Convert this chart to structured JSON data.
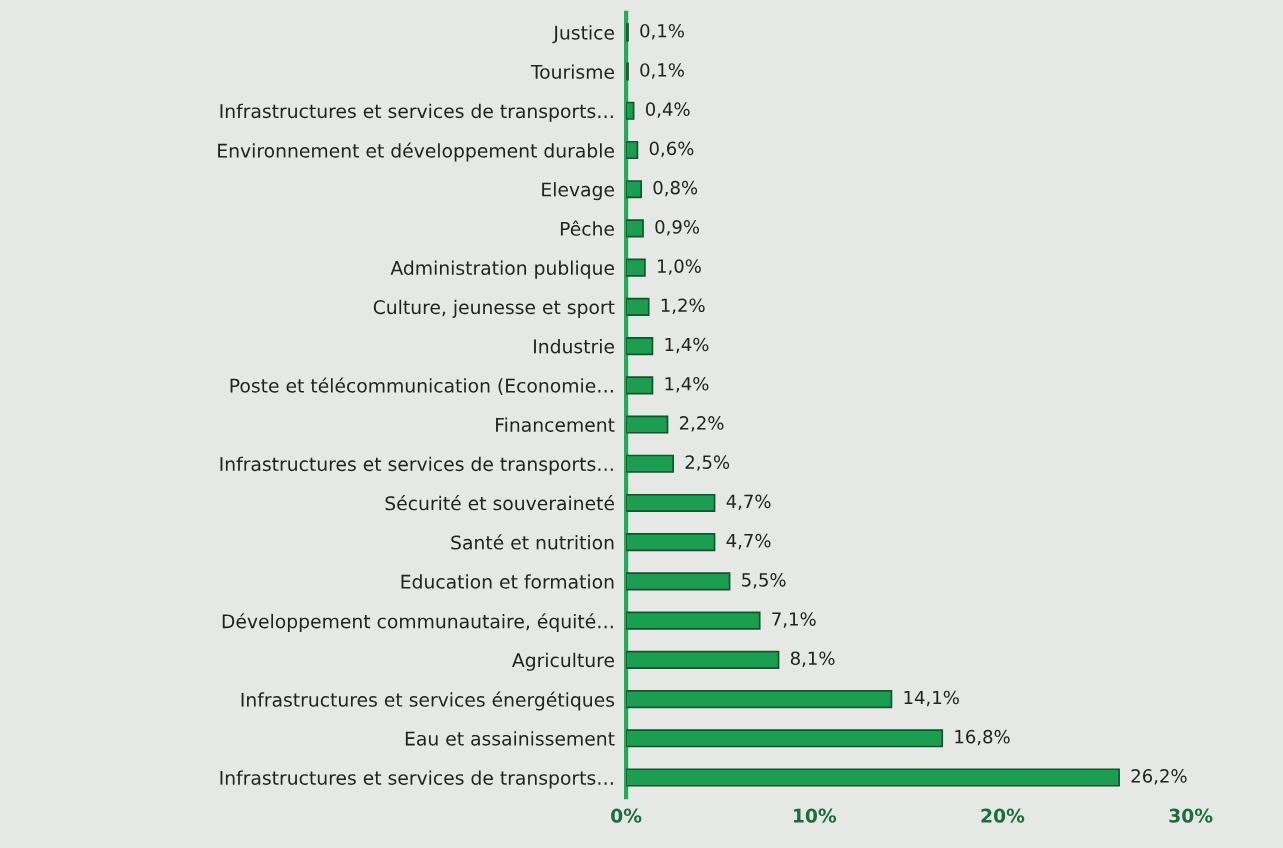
{
  "chart_data": {
    "type": "bar",
    "orientation": "horizontal",
    "categories": [
      "Justice",
      "Tourisme",
      "Infrastructures et services de transports…",
      "Environnement et développement durable",
      "Elevage",
      "Pêche",
      "Administration publique",
      "Culture, jeunesse et sport",
      "Industrie",
      "Poste et télécommunication (Economie…",
      "Financement",
      "Infrastructures et services de transports…",
      "Sécurité et souveraineté",
      "Santé et nutrition",
      "Education et formation",
      "Développement communautaire, équité…",
      "Agriculture",
      "Infrastructures et services énergétiques",
      "Eau et assainissement",
      "Infrastructures et services de transports…"
    ],
    "values": [
      0.1,
      0.1,
      0.4,
      0.6,
      0.8,
      0.9,
      1.0,
      1.2,
      1.4,
      1.4,
      2.2,
      2.5,
      4.7,
      4.7,
      5.5,
      7.1,
      8.1,
      14.1,
      16.8,
      26.2
    ],
    "value_labels": [
      "0,1%",
      "0,1%",
      "0,4%",
      "0,6%",
      "0,8%",
      "0,9%",
      "1,0%",
      "1,2%",
      "1,4%",
      "1,4%",
      "2,2%",
      "2,5%",
      "4,7%",
      "4,7%",
      "5,5%",
      "7,1%",
      "8,1%",
      "14,1%",
      "16,8%",
      "26,2%"
    ],
    "color": "#1b9e4f",
    "xlim": [
      0,
      30
    ],
    "xticks": [
      {
        "value": 0,
        "label": "0%"
      },
      {
        "value": 10,
        "label": "10%"
      },
      {
        "value": 20,
        "label": "20%"
      },
      {
        "value": 30,
        "label": "30%"
      }
    ],
    "grid": false,
    "legend": false
  }
}
